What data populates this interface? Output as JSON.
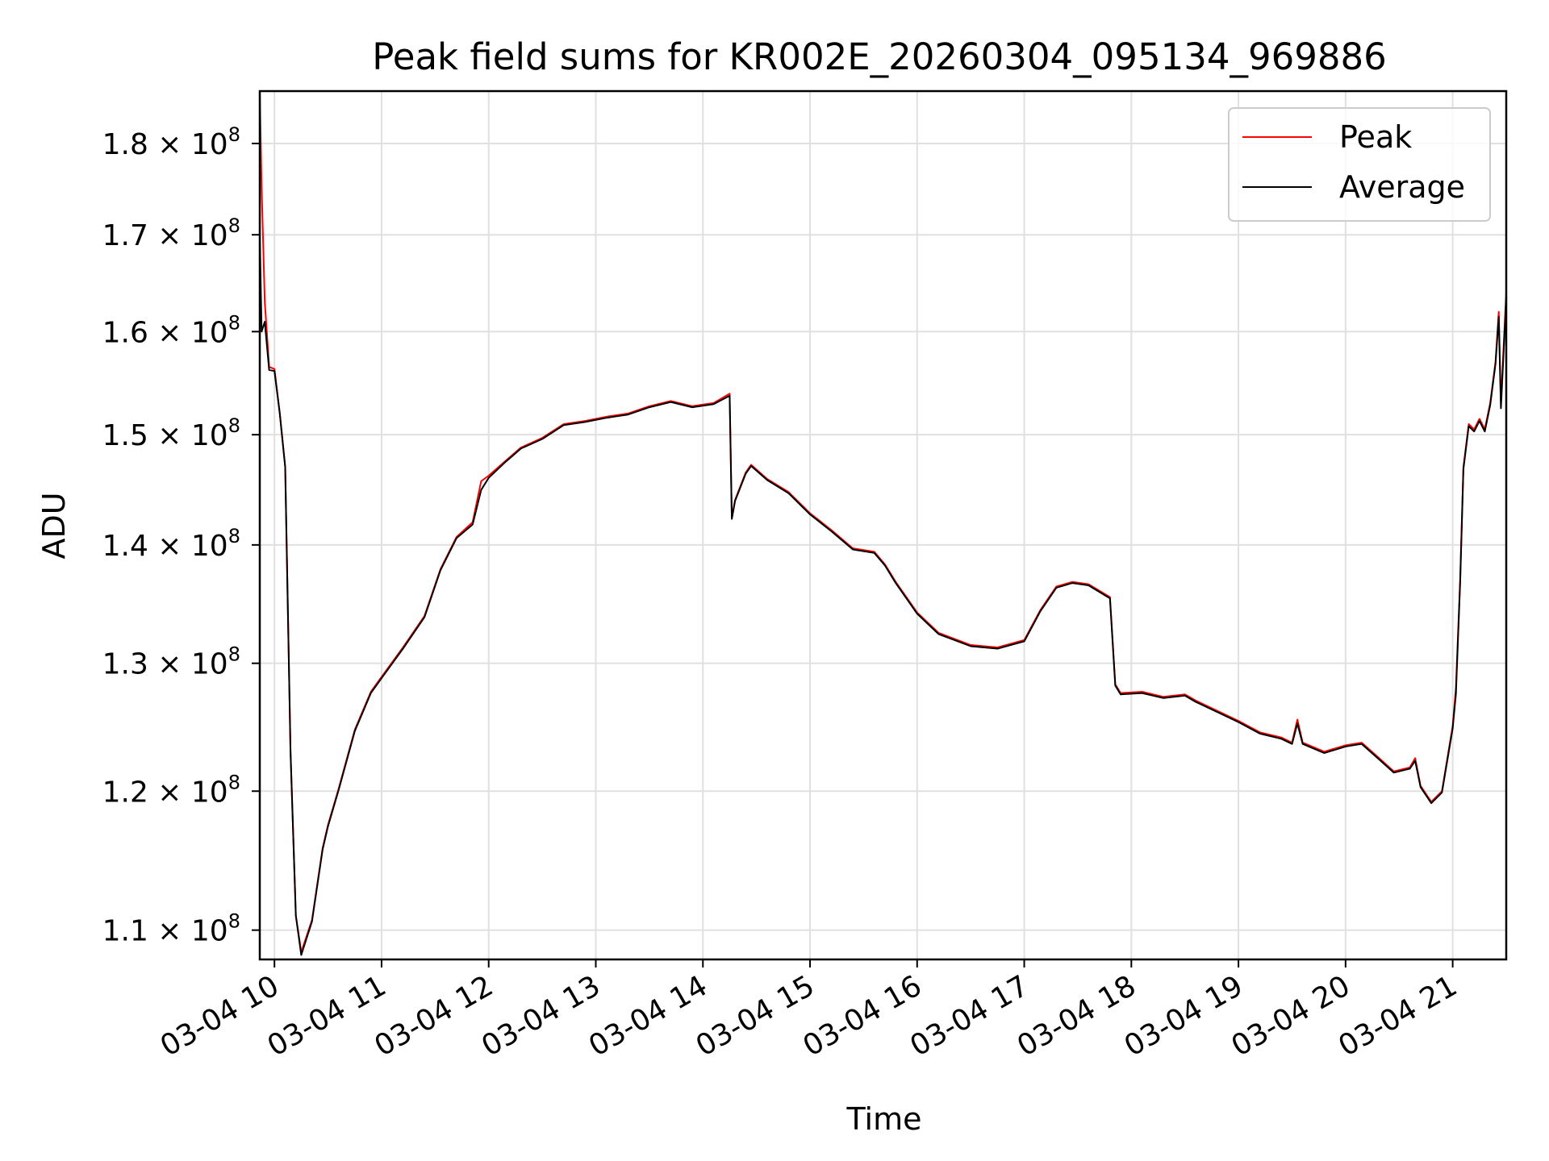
{
  "chart_data": {
    "type": "line",
    "title": "Peak field sums for KR002E_20260304_095134_969886",
    "xlabel": "Time",
    "ylabel": "ADU",
    "yscale": "log",
    "ylim": [
      108000000,
      186000000
    ],
    "xlim_hours": [
      9.863,
      21.5
    ],
    "grid": true,
    "legend_position": "upper right",
    "x_ticks": [
      {
        "hour": 10,
        "label": "03-04 10"
      },
      {
        "hour": 11,
        "label": "03-04 11"
      },
      {
        "hour": 12,
        "label": "03-04 12"
      },
      {
        "hour": 13,
        "label": "03-04 13"
      },
      {
        "hour": 14,
        "label": "03-04 14"
      },
      {
        "hour": 15,
        "label": "03-04 15"
      },
      {
        "hour": 16,
        "label": "03-04 16"
      },
      {
        "hour": 17,
        "label": "03-04 17"
      },
      {
        "hour": 18,
        "label": "03-04 18"
      },
      {
        "hour": 19,
        "label": "03-04 19"
      },
      {
        "hour": 20,
        "label": "03-04 20"
      },
      {
        "hour": 21,
        "label": "03-04 21"
      }
    ],
    "y_ticks": [
      {
        "value": 110000000,
        "mantissa": "1.1",
        "base": "10",
        "exp": "8"
      },
      {
        "value": 120000000,
        "mantissa": "1.2",
        "base": "10",
        "exp": "8"
      },
      {
        "value": 130000000,
        "mantissa": "1.3",
        "base": "10",
        "exp": "8"
      },
      {
        "value": 140000000,
        "mantissa": "1.4",
        "base": "10",
        "exp": "8"
      },
      {
        "value": 150000000,
        "mantissa": "1.5",
        "base": "10",
        "exp": "8"
      },
      {
        "value": 160000000,
        "mantissa": "1.6",
        "base": "10",
        "exp": "8"
      },
      {
        "value": 170000000,
        "mantissa": "1.7",
        "base": "10",
        "exp": "8"
      },
      {
        "value": 180000000,
        "mantissa": "1.8",
        "base": "10",
        "exp": "8"
      }
    ],
    "series": [
      {
        "name": "Peak",
        "color": "#ff0000",
        "hours": [
          9.863,
          9.88,
          9.91,
          9.95,
          10.0,
          10.05,
          10.1,
          10.15,
          10.2,
          10.25,
          10.35,
          10.45,
          10.5,
          10.6,
          10.75,
          10.9,
          11.0,
          11.2,
          11.4,
          11.55,
          11.7,
          11.85,
          11.93,
          12.0,
          12.15,
          12.3,
          12.5,
          12.7,
          12.9,
          13.1,
          13.3,
          13.5,
          13.7,
          13.9,
          14.1,
          14.25,
          14.27,
          14.3,
          14.4,
          14.45,
          14.6,
          14.8,
          15.0,
          15.2,
          15.4,
          15.6,
          15.7,
          15.8,
          16.0,
          16.2,
          16.5,
          16.75,
          17.0,
          17.15,
          17.3,
          17.45,
          17.6,
          17.8,
          17.85,
          17.9,
          18.1,
          18.3,
          18.5,
          18.6,
          18.8,
          19.0,
          19.2,
          19.4,
          19.5,
          19.55,
          19.6,
          19.8,
          20.0,
          20.15,
          20.3,
          20.45,
          20.6,
          20.65,
          20.7,
          20.8,
          20.9,
          21.0,
          21.03,
          21.07,
          21.1,
          21.15,
          21.2,
          21.25,
          21.3,
          21.35,
          21.4,
          21.43,
          21.45,
          21.5
        ],
        "values": [
          186000000,
          175000000,
          163000000,
          156500000,
          156300000,
          152000000,
          147000000,
          123000000,
          111000000,
          108500000,
          110700000,
          115800000,
          117500000,
          120200000,
          124700000,
          127700000,
          128900000,
          131300000,
          133900000,
          137900000,
          140700000,
          142000000,
          145700000,
          146200000,
          147500000,
          148800000,
          149700000,
          151000000,
          151300000,
          151700000,
          152000000,
          152700000,
          153200000,
          152700000,
          153000000,
          153900000,
          142400000,
          144000000,
          146500000,
          147200000,
          145900000,
          144700000,
          142800000,
          141300000,
          139700000,
          139400000,
          138300000,
          136800000,
          134200000,
          132500000,
          131500000,
          131300000,
          131900000,
          134400000,
          136400000,
          136800000,
          136600000,
          135500000,
          128300000,
          127600000,
          127700000,
          127300000,
          127500000,
          127000000,
          126200000,
          125400000,
          124500000,
          124100000,
          123700000,
          125500000,
          123700000,
          123000000,
          123500000,
          123700000,
          122600000,
          121500000,
          121800000,
          122500000,
          120400000,
          119200000,
          120000000,
          125000000,
          128000000,
          137000000,
          147000000,
          151000000,
          150500000,
          151500000,
          150500000,
          153000000,
          157000000,
          162000000,
          153000000,
          164000000
        ]
      },
      {
        "name": "Average",
        "color": "#000000",
        "hours": [
          9.863,
          9.88,
          9.91,
          9.95,
          10.0,
          10.05,
          10.1,
          10.15,
          10.2,
          10.25,
          10.35,
          10.45,
          10.5,
          10.6,
          10.75,
          10.9,
          11.0,
          11.2,
          11.4,
          11.55,
          11.7,
          11.85,
          11.93,
          12.0,
          12.15,
          12.3,
          12.5,
          12.7,
          12.9,
          13.1,
          13.3,
          13.5,
          13.7,
          13.9,
          14.1,
          14.25,
          14.27,
          14.3,
          14.4,
          14.45,
          14.6,
          14.8,
          15.0,
          15.2,
          15.4,
          15.6,
          15.7,
          15.8,
          16.0,
          16.2,
          16.5,
          16.75,
          17.0,
          17.15,
          17.3,
          17.45,
          17.6,
          17.8,
          17.85,
          17.9,
          18.1,
          18.3,
          18.5,
          18.6,
          18.8,
          19.0,
          19.2,
          19.4,
          19.5,
          19.55,
          19.6,
          19.8,
          20.0,
          20.15,
          20.3,
          20.45,
          20.6,
          20.65,
          20.7,
          20.8,
          20.9,
          21.0,
          21.03,
          21.07,
          21.1,
          21.15,
          21.2,
          21.25,
          21.3,
          21.35,
          21.4,
          21.43,
          21.45,
          21.5
        ],
        "values": [
          170000000,
          160000000,
          161000000,
          156200000,
          156100000,
          152000000,
          147000000,
          123000000,
          111000000,
          108300000,
          110600000,
          115700000,
          117400000,
          120100000,
          124600000,
          127600000,
          128800000,
          131200000,
          133800000,
          137800000,
          140600000,
          141800000,
          144900000,
          146000000,
          147400000,
          148700000,
          149600000,
          150900000,
          151200000,
          151600000,
          151900000,
          152600000,
          153100000,
          152600000,
          152900000,
          153700000,
          142300000,
          143900000,
          146400000,
          147100000,
          145800000,
          144600000,
          142700000,
          141200000,
          139600000,
          139300000,
          138200000,
          136700000,
          134100000,
          132400000,
          131400000,
          131200000,
          131800000,
          134300000,
          136300000,
          136700000,
          136500000,
          135400000,
          128200000,
          127500000,
          127600000,
          127200000,
          127400000,
          126900000,
          126100000,
          125300000,
          124400000,
          124000000,
          123600000,
          125200000,
          123600000,
          122900000,
          123400000,
          123600000,
          122500000,
          121400000,
          121700000,
          122300000,
          120300000,
          119100000,
          119900000,
          124800000,
          127500000,
          136800000,
          146800000,
          150800000,
          150300000,
          151300000,
          150300000,
          152800000,
          156800000,
          161500000,
          152500000,
          163500000
        ]
      }
    ]
  }
}
